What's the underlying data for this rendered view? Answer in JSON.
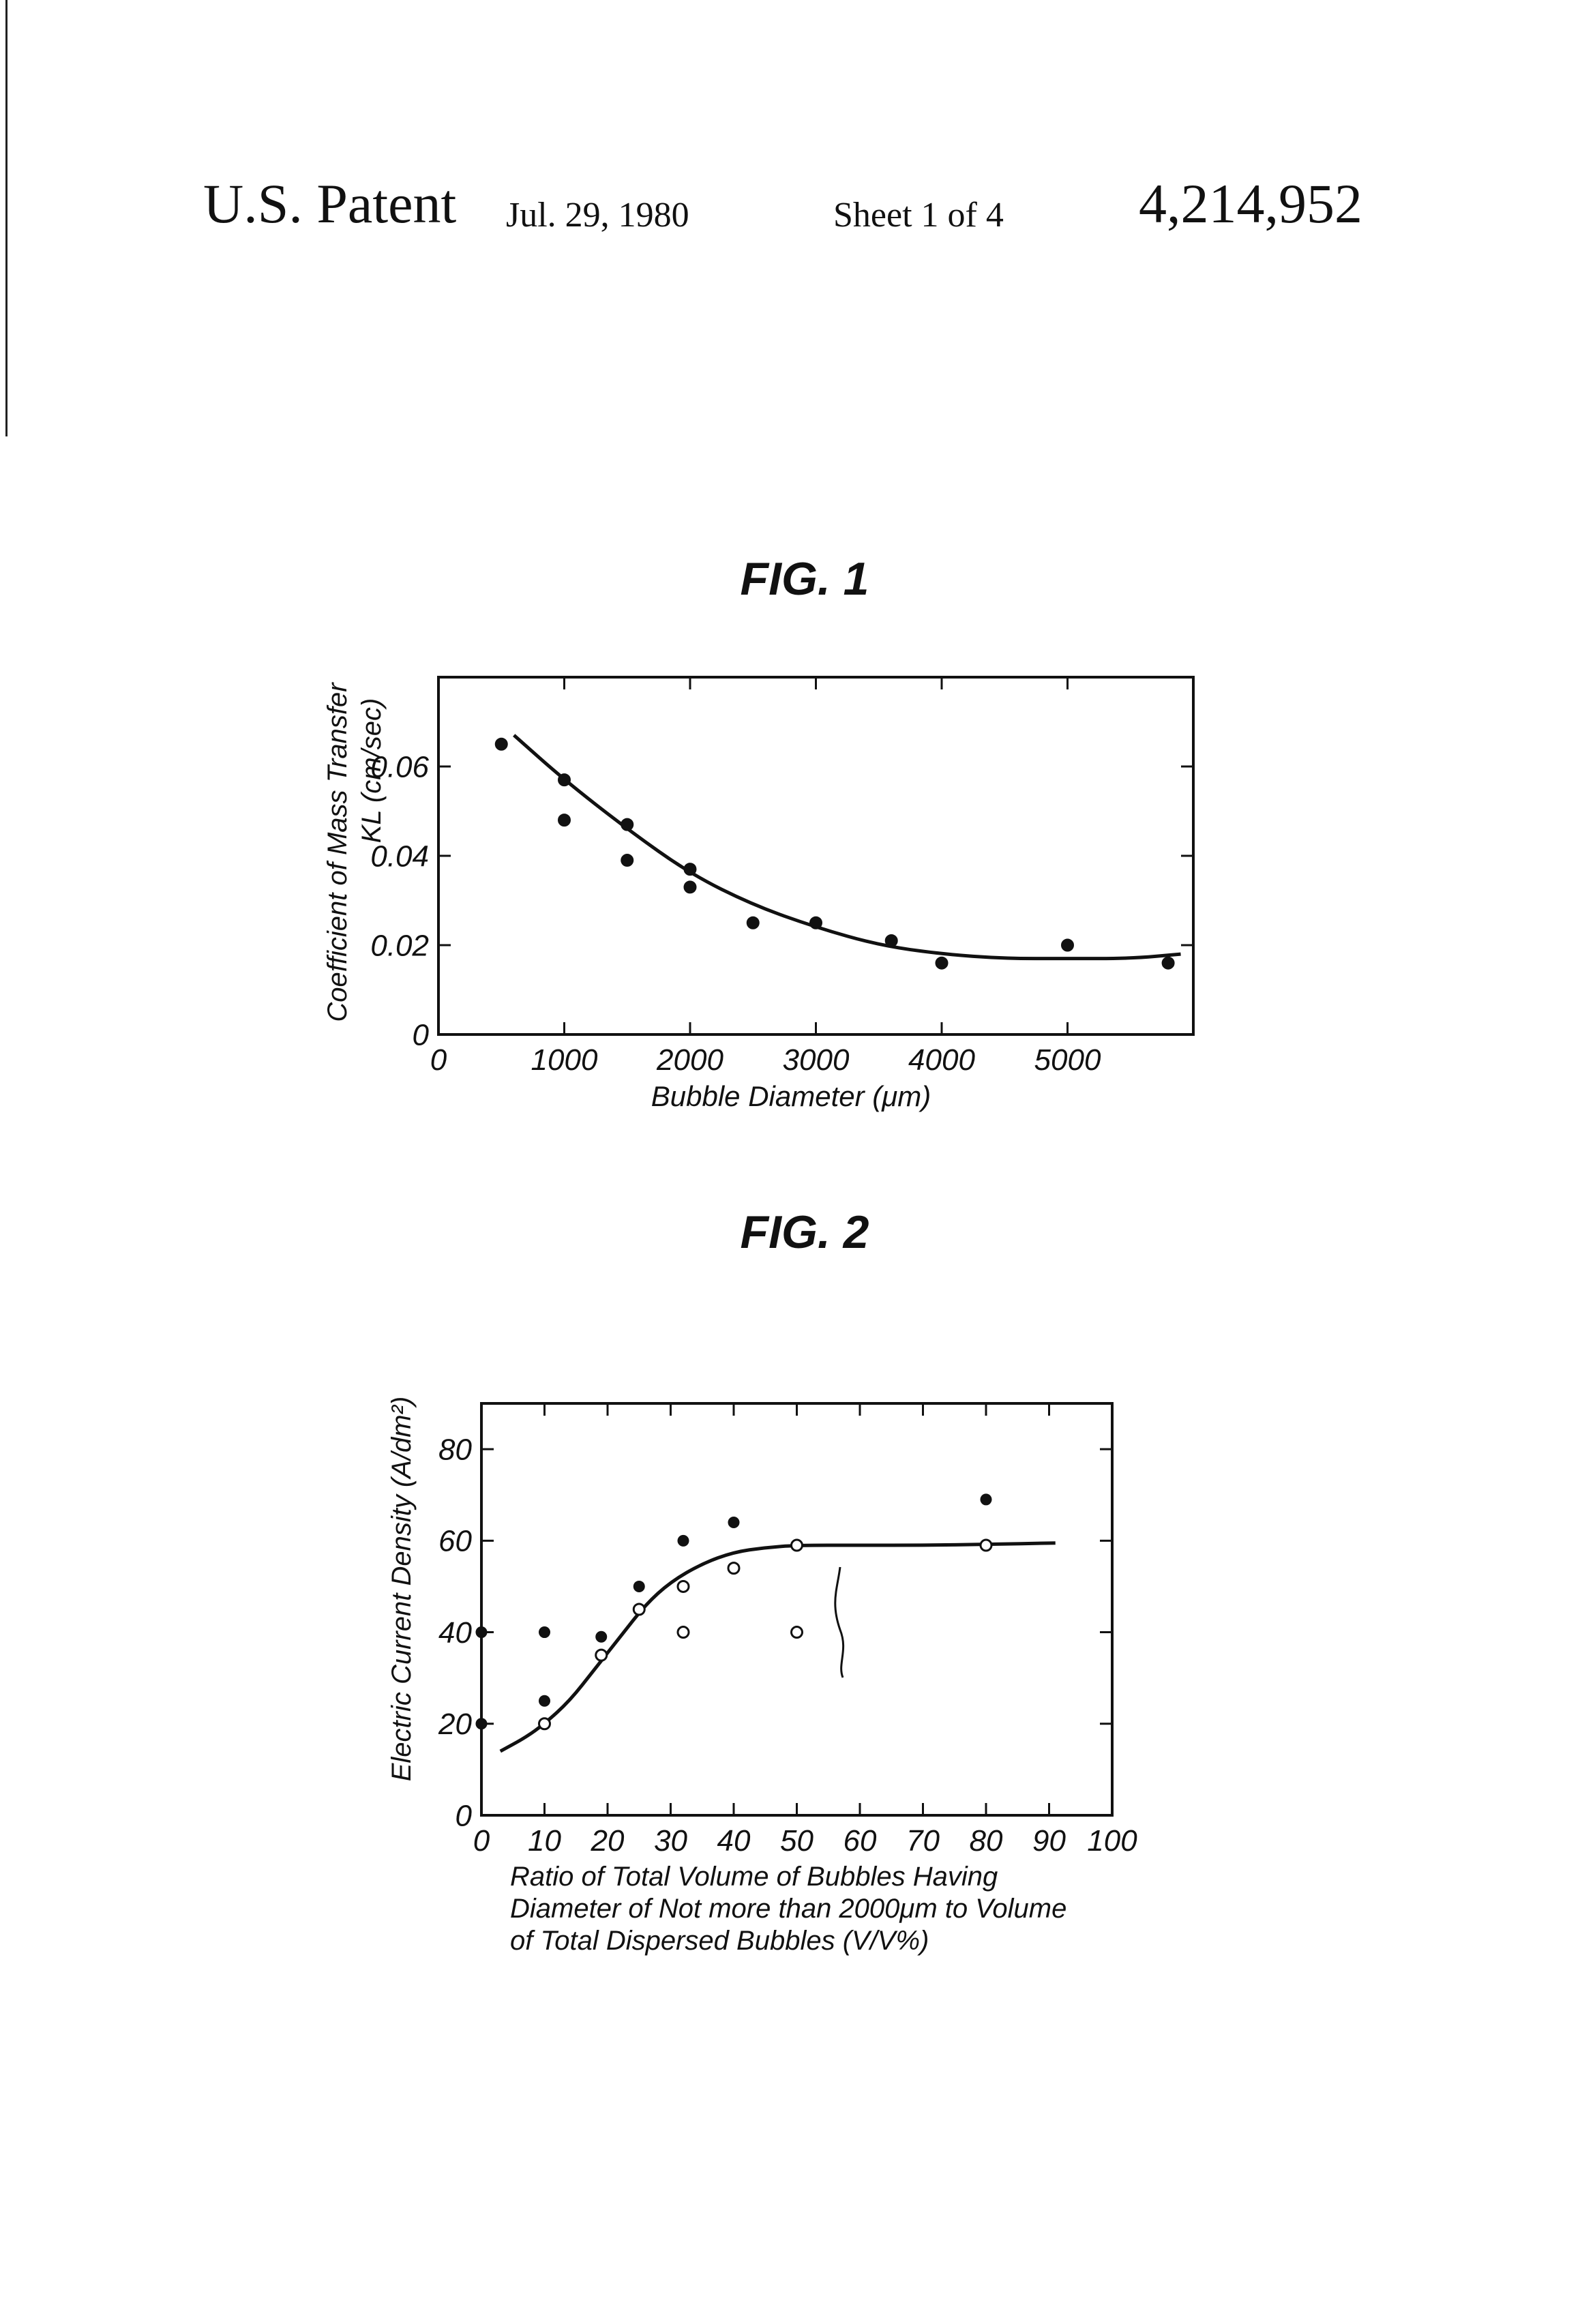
{
  "header": {
    "patent_label": "U.S. Patent",
    "date": "Jul. 29, 1980",
    "sheet": "Sheet 1 of 4",
    "patent_number": "4,214,952"
  },
  "chart_data": [
    {
      "type": "scatter",
      "title": "FIG. 1",
      "xlabel": "Bubble Diameter (μm)",
      "ylabel_lines": [
        "Coefficient of Mass Transfer",
        "KL (cm/sec)"
      ],
      "x_ticks": [
        0,
        1000,
        2000,
        3000,
        4000,
        5000
      ],
      "y_ticks": [
        0,
        0.02,
        0.04,
        0.06
      ],
      "x_tick_labels": [
        "0",
        "1000",
        "2000",
        "3000",
        "4000",
        "5000"
      ],
      "y_tick_labels": [
        "0",
        "0.02",
        "0.04",
        "0.06"
      ],
      "xlim": [
        0,
        6000
      ],
      "ylim": [
        0,
        0.08
      ],
      "grid": false,
      "series": [
        {
          "marker": "filled-circle",
          "x": [
            500,
            1000,
            1000,
            1500,
            1500,
            2000,
            2000,
            2500,
            3000,
            3600,
            4000,
            5000,
            5800
          ],
          "y": [
            0.065,
            0.057,
            0.048,
            0.047,
            0.039,
            0.037,
            0.033,
            0.025,
            0.025,
            0.021,
            0.016,
            0.02,
            0.016
          ]
        },
        {
          "type": "line",
          "marker": "none",
          "x": [
            600,
            1000,
            1500,
            2000,
            2500,
            3000,
            3500,
            4000,
            4500,
            5000,
            5500,
            5900
          ],
          "y": [
            0.067,
            0.057,
            0.046,
            0.036,
            0.029,
            0.024,
            0.02,
            0.018,
            0.017,
            0.017,
            0.017,
            0.018
          ]
        }
      ]
    },
    {
      "type": "scatter",
      "title": "FIG. 2",
      "xlabel_lines": [
        "Ratio of Total Volume of Bubbles Having",
        "Diameter of Not more than 2000μm to Volume",
        "of Total Dispersed Bubbles (V/V%)"
      ],
      "ylabel": "Electric Current Density (A/dm²)",
      "x_ticks": [
        0,
        10,
        20,
        30,
        40,
        50,
        60,
        70,
        80,
        90,
        100
      ],
      "y_ticks": [
        0,
        20,
        40,
        60,
        80
      ],
      "x_tick_labels": [
        "0",
        "10",
        "20",
        "30",
        "40",
        "50",
        "60",
        "70",
        "80",
        "90",
        "100"
      ],
      "y_tick_labels": [
        "0",
        "20",
        "40",
        "60",
        "80"
      ],
      "xlim": [
        0,
        100
      ],
      "ylim": [
        0,
        90
      ],
      "grid": false,
      "series": [
        {
          "marker": "filled-circle",
          "x": [
            0,
            0,
            10,
            10,
            19,
            25,
            32,
            40,
            80
          ],
          "y": [
            40,
            20,
            40,
            25,
            39,
            50,
            60,
            64,
            69
          ]
        },
        {
          "marker": "open-circle",
          "x": [
            10,
            19,
            25,
            32,
            32,
            40,
            50,
            50,
            80
          ],
          "y": [
            20,
            35,
            45,
            50,
            40,
            54,
            59,
            40,
            59
          ]
        },
        {
          "type": "line",
          "marker": "none",
          "x": [
            3,
            7,
            10,
            14,
            18,
            22,
            26,
            30,
            35,
            40,
            45,
            50,
            60,
            70,
            80,
            91
          ],
          "y": [
            14,
            17,
            20,
            25,
            32,
            39,
            46,
            51,
            55,
            57.5,
            58.5,
            59,
            59,
            59,
            59.2,
            59.5
          ]
        }
      ]
    }
  ]
}
